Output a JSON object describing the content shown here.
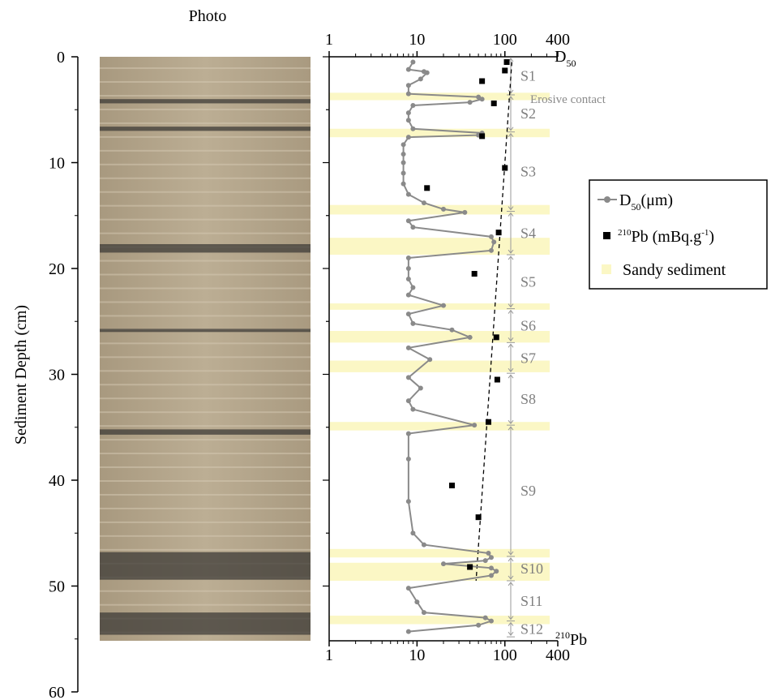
{
  "photo": {
    "title": "Photo"
  },
  "colors": {
    "axis": "#000000",
    "d50_line": "#8a8a8a",
    "pb_marker": "#000000",
    "sandy_band": "#fbf7c5",
    "trend_line": "#000000",
    "unit_text": "#7f7f7f",
    "photo_base": "#b9a98f",
    "photo_dark": "#3e3b37"
  },
  "depth_axis": {
    "label": "Sediment Depth (cm)",
    "range": [
      0,
      60
    ],
    "ticks": [
      "0",
      "10",
      "20",
      "30",
      "40",
      "50",
      "60"
    ]
  },
  "x_axis": {
    "scale": "log",
    "range": [
      1,
      400
    ],
    "top_ticks": [
      "1",
      "10",
      "100",
      "400"
    ],
    "bottom_ticks": [
      "1",
      "10",
      "100",
      "400"
    ],
    "top_label": "D",
    "top_label_sub": "50",
    "bottom_label_sup": "210",
    "bottom_label": "Pb"
  },
  "legend": {
    "d50_label": "D",
    "d50_sub": "50",
    "d50_unit": "(μm)",
    "pb_sup": "210",
    "pb_label": "Pb (mBq.g",
    "pb_exp": "-1",
    "pb_close": ")",
    "sandy_label": "Sandy sediment"
  },
  "annotation": "Erosive contact",
  "chart_data": {
    "type": "line",
    "x_scale": "log",
    "xlim": [
      1,
      400
    ],
    "ylim": [
      0,
      60
    ],
    "ylabel": "Sediment Depth (cm)",
    "series": [
      {
        "name": "D50 (μm)",
        "points": [
          [
            9,
            0.5
          ],
          [
            8,
            1.2
          ],
          [
            12,
            1.4
          ],
          [
            13,
            1.5
          ],
          [
            11,
            2.1
          ],
          [
            8,
            2.7
          ],
          [
            8,
            3.5
          ],
          [
            50,
            3.8
          ],
          [
            55,
            4.0
          ],
          [
            40,
            4.3
          ],
          [
            9,
            4.6
          ],
          [
            8,
            5.3
          ],
          [
            8,
            6.0
          ],
          [
            9,
            6.8
          ],
          [
            55,
            7.2
          ],
          [
            50,
            7.4
          ],
          [
            8,
            7.6
          ],
          [
            7,
            8.3
          ],
          [
            7,
            9.2
          ],
          [
            7,
            10.0
          ],
          [
            7,
            11.0
          ],
          [
            7,
            12.0
          ],
          [
            8,
            13.0
          ],
          [
            12,
            13.8
          ],
          [
            20,
            14.4
          ],
          [
            35,
            14.7
          ],
          [
            8,
            15.5
          ],
          [
            9,
            16.1
          ],
          [
            70,
            17.0
          ],
          [
            75,
            17.5
          ],
          [
            70,
            18.3
          ],
          [
            8,
            19.0
          ],
          [
            8,
            20.0
          ],
          [
            8,
            21.0
          ],
          [
            9,
            21.8
          ],
          [
            8,
            22.5
          ],
          [
            20,
            23.5
          ],
          [
            8,
            24.3
          ],
          [
            9,
            25.2
          ],
          [
            25,
            25.8
          ],
          [
            40,
            26.5
          ],
          [
            8,
            27.5
          ],
          [
            14,
            28.6
          ],
          [
            8,
            30.3
          ],
          [
            11,
            31.3
          ],
          [
            8,
            32.5
          ],
          [
            9,
            33.3
          ],
          [
            45,
            34.8
          ],
          [
            8,
            35.6
          ],
          [
            8,
            38.0
          ],
          [
            8,
            42.0
          ],
          [
            9,
            45.0
          ],
          [
            12,
            46.1
          ],
          [
            65,
            46.9
          ],
          [
            70,
            47.3
          ],
          [
            60,
            47.6
          ],
          [
            20,
            47.9
          ],
          [
            70,
            48.3
          ],
          [
            80,
            48.6
          ],
          [
            70,
            49.0
          ],
          [
            8,
            50.2
          ],
          [
            10,
            51.5
          ],
          [
            12,
            52.5
          ],
          [
            60,
            53.0
          ],
          [
            70,
            53.3
          ],
          [
            50,
            53.7
          ],
          [
            8,
            54.3
          ]
        ]
      },
      {
        "name": "210Pb (mBq.g-1)",
        "points": [
          [
            105,
            0.5
          ],
          [
            100,
            1.3
          ],
          [
            55,
            2.3
          ],
          [
            75,
            4.4
          ],
          [
            55,
            7.5
          ],
          [
            100,
            10.5
          ],
          [
            13,
            12.4
          ],
          [
            85,
            16.6
          ],
          [
            45,
            20.5
          ],
          [
            80,
            26.5
          ],
          [
            82,
            30.5
          ],
          [
            65,
            34.5
          ],
          [
            25,
            40.5
          ],
          [
            50,
            43.5
          ],
          [
            40,
            48.2
          ]
        ]
      }
    ],
    "trend_line": {
      "from": [
        120,
        0.5
      ],
      "to": [
        47,
        49.5
      ]
    },
    "sandy_layers": [
      [
        3.4,
        4.1
      ],
      [
        6.8,
        7.6
      ],
      [
        14.0,
        14.9
      ],
      [
        17.1,
        18.7
      ],
      [
        23.3,
        23.9
      ],
      [
        25.9,
        27.0
      ],
      [
        28.7,
        29.8
      ],
      [
        34.5,
        35.3
      ],
      [
        46.5,
        47.3
      ],
      [
        47.8,
        49.5
      ],
      [
        52.8,
        53.6
      ]
    ],
    "units": [
      {
        "label": "S1",
        "from": 0,
        "to": 3.6
      },
      {
        "label": "S2",
        "from": 3.6,
        "to": 7.1
      },
      {
        "label": "S3",
        "from": 7.1,
        "to": 14.6
      },
      {
        "label": "S4",
        "from": 14.6,
        "to": 18.7
      },
      {
        "label": "S5",
        "from": 18.7,
        "to": 23.8
      },
      {
        "label": "S6",
        "from": 23.8,
        "to": 27.0
      },
      {
        "label": "S7",
        "from": 27.0,
        "to": 29.9
      },
      {
        "label": "S8",
        "from": 29.9,
        "to": 34.8
      },
      {
        "label": "S9",
        "from": 34.8,
        "to": 47.2
      },
      {
        "label": "S10",
        "from": 47.2,
        "to": 49.5
      },
      {
        "label": "S11",
        "from": 49.5,
        "to": 53.3
      },
      {
        "label": "S12",
        "from": 53.3,
        "to": 54.8
      }
    ],
    "photo_dark_layers": [
      [
        4.0,
        4.4
      ],
      [
        6.6,
        7.0
      ],
      [
        17.7,
        18.5
      ],
      [
        25.7,
        26.0
      ],
      [
        35.2,
        35.7
      ],
      [
        46.8,
        49.4
      ],
      [
        52.5,
        54.6
      ]
    ]
  }
}
